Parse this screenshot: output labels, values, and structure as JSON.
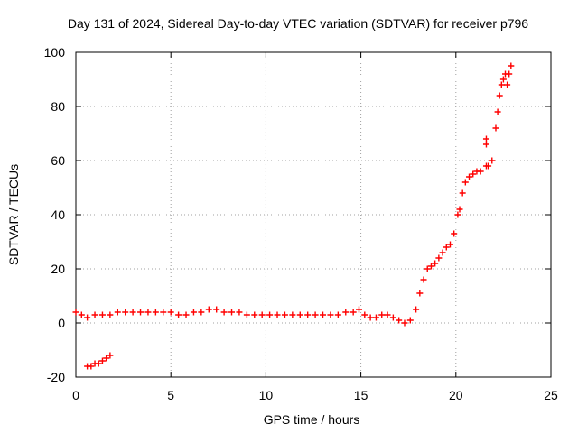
{
  "chart_data": {
    "type": "scatter",
    "title": "Day 131 of 2024, Sidereal Day-to-day VTEC variation (SDTVAR) for receiver p796",
    "xlabel": "GPS time / hours",
    "ylabel": "SDTVAR / TECUs",
    "xlim": [
      0,
      25
    ],
    "ylim": [
      -20,
      100
    ],
    "x_ticks": [
      0,
      5,
      10,
      15,
      20,
      25
    ],
    "y_ticks": [
      -20,
      0,
      20,
      40,
      60,
      80,
      100
    ],
    "grid": true,
    "marker": "+",
    "series": [
      {
        "name": "SDTVAR",
        "color": "#ff0000",
        "x": [
          0.0,
          0.3,
          0.6,
          1.0,
          1.4,
          1.8,
          2.2,
          2.6,
          3.0,
          3.4,
          3.8,
          4.2,
          4.6,
          5.0,
          5.4,
          5.8,
          6.2,
          6.6,
          7.0,
          7.4,
          7.8,
          8.2,
          8.6,
          9.0,
          9.4,
          9.8,
          10.2,
          10.6,
          11.0,
          11.4,
          11.8,
          12.2,
          12.6,
          13.0,
          13.4,
          13.8,
          14.2,
          14.6,
          14.9,
          15.2,
          15.5,
          15.8,
          16.1,
          16.4,
          16.7,
          17.0,
          17.3,
          17.6,
          17.9,
          18.1,
          18.3,
          18.5,
          18.7,
          18.9,
          19.1,
          19.3,
          19.5,
          19.7,
          19.9,
          20.1,
          20.2,
          20.35,
          20.5,
          20.7,
          20.9,
          21.1,
          21.3,
          21.6,
          21.9,
          22.1,
          22.2,
          22.3,
          22.4,
          22.5,
          22.6,
          22.7,
          22.8,
          22.9,
          0.6,
          0.8,
          1.0,
          1.2,
          1.4,
          1.6,
          1.8,
          21.6,
          21.6,
          21.7
        ],
        "y": [
          4,
          3,
          2,
          3,
          3,
          3,
          4,
          4,
          4,
          4,
          4,
          4,
          4,
          4,
          3,
          3,
          4,
          4,
          5,
          5,
          4,
          4,
          4,
          3,
          3,
          3,
          3,
          3,
          3,
          3,
          3,
          3,
          3,
          3,
          3,
          3,
          4,
          4,
          5,
          3,
          2,
          2,
          3,
          3,
          2,
          1,
          0,
          1,
          5,
          11,
          16,
          20,
          21,
          22,
          24,
          26,
          28,
          29,
          33,
          40,
          42,
          48,
          52,
          54,
          55,
          56,
          56,
          58,
          60,
          72,
          78,
          84,
          88,
          90,
          92,
          88,
          92,
          95,
          -16,
          -16,
          -15,
          -15,
          -14,
          -13,
          -12,
          66,
          68,
          58
        ]
      }
    ]
  }
}
